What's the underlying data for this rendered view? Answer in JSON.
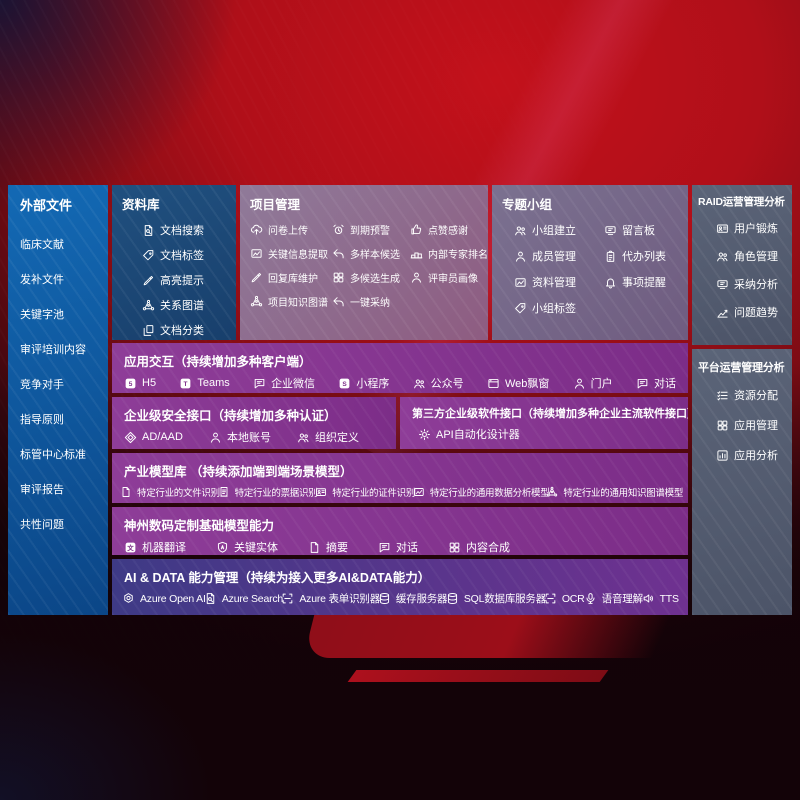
{
  "palette": {
    "bg_red": "#b8101b",
    "sidebar_blue_1": "#1369b4",
    "sidebar_blue_2": "#0b4687",
    "library_blue_1": "#20507f",
    "library_blue_2": "#183f6c",
    "project_m1": "#8f7a99",
    "project_m2": "#8e5c81",
    "group_m1": "#7b7190",
    "group_m2": "#6f5c80",
    "ops_1": "#5b6478",
    "ops_2": "#4c5468",
    "row_p1": "#8e3d98",
    "row_p2": "#7c2d88",
    "ai_1": "#3e3a86",
    "ai_2": "#6f3190",
    "badge_text": "#7c2d88"
  },
  "sidebar": {
    "title": "外部文件",
    "items": [
      {
        "label": "临床文献"
      },
      {
        "label": "发补文件"
      },
      {
        "label": "关键字池"
      },
      {
        "label": "审评培训内容"
      },
      {
        "label": "竞争对手"
      },
      {
        "label": "指导原则"
      },
      {
        "label": "标管中心标准"
      },
      {
        "label": "审评报告"
      },
      {
        "label": "共性问题"
      }
    ]
  },
  "panels": {
    "library": {
      "title": "资料库",
      "items": [
        {
          "icon": "doc-search-icon",
          "label": "文档搜索"
        },
        {
          "icon": "doc-tag-icon",
          "label": "文档标签"
        },
        {
          "icon": "highlight-icon",
          "label": "高亮提示"
        },
        {
          "icon": "relation-graph-icon",
          "label": "关系图谱"
        },
        {
          "icon": "doc-category-icon",
          "label": "文档分类"
        }
      ]
    },
    "project": {
      "title": "项目管理",
      "items": [
        {
          "icon": "questionnaire-upload-icon",
          "label": "问卷上传"
        },
        {
          "icon": "due-warning-icon",
          "label": "到期预警"
        },
        {
          "icon": "like-thanks-icon",
          "label": "点赞感谢"
        },
        {
          "icon": "key-info-extraction-icon",
          "label": "关键信息提取"
        },
        {
          "icon": "multi-sample-icon",
          "label": "多样本候选"
        },
        {
          "icon": "expert-ranking-icon",
          "label": "内部专家排名"
        },
        {
          "icon": "reply-library-maintenance-icon",
          "label": "回复库维护"
        },
        {
          "icon": "multi-candidate-generation-icon",
          "label": "多候选生成"
        },
        {
          "icon": "reviewer-profile-icon",
          "label": "评审员画像"
        },
        {
          "icon": "project-knowledge-graph-icon",
          "label": "项目知识图谱"
        },
        {
          "icon": "one-click-adoption-icon",
          "label": "一键采纳"
        }
      ]
    },
    "group": {
      "title": "专题小组",
      "items": [
        {
          "icon": "group-create-icon",
          "label": "小组建立"
        },
        {
          "icon": "message-board-icon",
          "label": "留言板"
        },
        {
          "icon": "member-manage-icon",
          "label": "成员管理"
        },
        {
          "icon": "todo-list-icon",
          "label": "代办列表"
        },
        {
          "icon": "material-manage-icon",
          "label": "资料管理"
        },
        {
          "icon": "reminder-icon",
          "label": "事项提醒"
        },
        {
          "icon": "group-tag-icon",
          "label": "小组标签"
        }
      ]
    },
    "raid": {
      "title": "RAID运营管理分析",
      "items": [
        {
          "icon": "user-profile-card-icon",
          "label": "用户锻炼"
        },
        {
          "icon": "role-manage-icon",
          "label": "角色管理"
        },
        {
          "icon": "adoption-analysis-icon",
          "label": "采纳分析"
        },
        {
          "icon": "issue-trend-icon",
          "label": "问题趋势"
        }
      ]
    },
    "platform": {
      "title": "平台运营管理分析",
      "items": [
        {
          "icon": "resource-allocation-icon",
          "label": "资源分配"
        },
        {
          "icon": "app-manage-icon",
          "label": "应用管理"
        },
        {
          "icon": "app-analysis-icon",
          "label": "应用分析"
        }
      ]
    }
  },
  "rows": {
    "interaction": {
      "title": "应用交互（持续增加多种客户端）",
      "items": [
        {
          "icon": "h5-icon",
          "label": "H5"
        },
        {
          "icon": "teams-icon",
          "label": "Teams"
        },
        {
          "icon": "wechat-work-icon",
          "label": "企业微信"
        },
        {
          "icon": "miniprogram-icon",
          "label": "小程序"
        },
        {
          "icon": "official-account-icon",
          "label": "公众号"
        },
        {
          "icon": "web-popup-icon",
          "label": "Web飘窗"
        },
        {
          "icon": "portal-icon",
          "label": "门户"
        },
        {
          "icon": "dialog-icon",
          "label": "对话"
        }
      ]
    },
    "security": {
      "title": "企业级安全接口（持续增加多种认证）",
      "items": [
        {
          "icon": "ad-aad-icon",
          "label": "AD/AAD"
        },
        {
          "icon": "local-account-icon",
          "label": "本地账号"
        },
        {
          "icon": "org-definition-icon",
          "label": "组织定义"
        }
      ]
    },
    "thirdparty": {
      "title": "第三方企业级软件接口（持续增加多种企业主流软件接口）",
      "items": [
        {
          "icon": "api-designer-icon",
          "label": "API自动化设计器"
        }
      ]
    },
    "industry": {
      "title": "产业模型库 （持续添加端到端场景模型）",
      "items": [
        {
          "icon": "industry-file-recognition-icon",
          "label": "特定行业的文件识别"
        },
        {
          "icon": "industry-receipt-recognition-icon",
          "label": "特定行业的票据识别"
        },
        {
          "icon": "industry-certificate-recognition-icon",
          "label": "特定行业的证件识别"
        },
        {
          "icon": "industry-data-analysis-model-icon",
          "label": "特定行业的通用数据分析模型"
        },
        {
          "icon": "industry-knowledge-graph-model-icon",
          "label": "特定行业的通用知识图谱模型"
        }
      ]
    },
    "digital": {
      "title": "神州数码定制基础模型能力",
      "items": [
        {
          "icon": "machine-translation-icon",
          "label": "机器翻译"
        },
        {
          "icon": "key-entity-icon",
          "label": "关键实体"
        },
        {
          "icon": "summary-icon",
          "label": "摘要"
        },
        {
          "icon": "dialogue-icon",
          "label": "对话"
        },
        {
          "icon": "content-composition-icon",
          "label": "内容合成"
        }
      ]
    },
    "aidata": {
      "title": "AI & DATA 能力管理（持续为接入更多AI&DATA能力）",
      "items": [
        {
          "icon": "azure-openai-icon",
          "label": "Azure Open AI"
        },
        {
          "icon": "azure-search-icon",
          "label": "Azure Search"
        },
        {
          "icon": "azure-form-recognizer-icon",
          "label": "Azure 表单识别器"
        },
        {
          "icon": "cache-server-icon",
          "label": "缓存服务器"
        },
        {
          "icon": "sql-database-server-icon",
          "label": "SQL数据库服务器"
        },
        {
          "icon": "ocr-icon",
          "label": "OCR"
        },
        {
          "icon": "speech-understanding-icon",
          "label": "语音理解"
        },
        {
          "icon": "tts-icon",
          "label": "TTS"
        }
      ]
    }
  }
}
